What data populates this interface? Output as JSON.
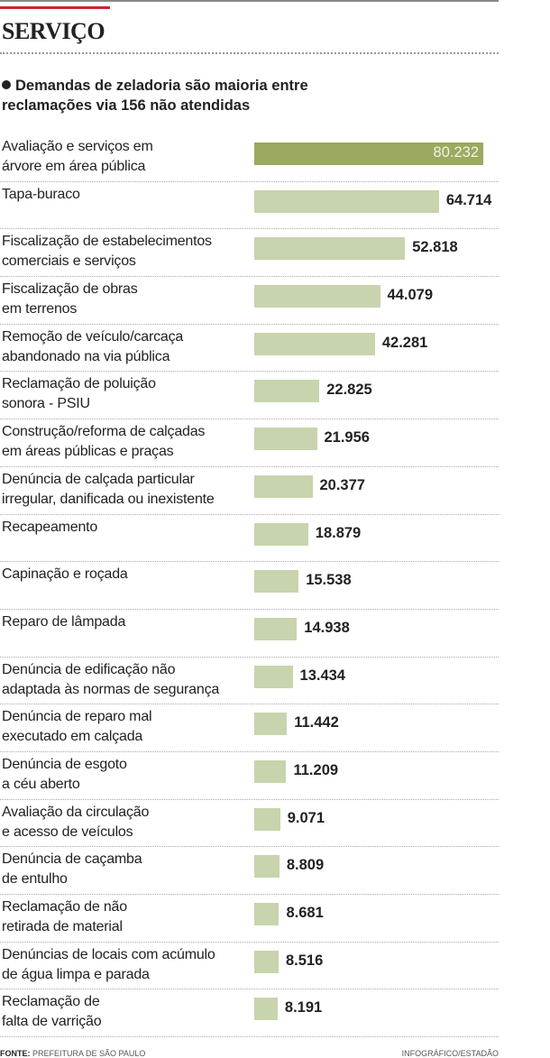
{
  "header": {
    "section": "SERVIÇO",
    "subtitle_line1": "Demandas de zeladoria são maioria entre",
    "subtitle_line2": "reclamações via 156 não atendidas"
  },
  "footer": {
    "source_label": "FONTE:",
    "source": "PREFEITURA DE SÃO PAULO",
    "credit": "INFOGRÁFICO/ESTADÃO"
  },
  "colors": {
    "highlight": "#9aaa5e",
    "bar": "#c8d4ad",
    "accent": "#c9272d"
  },
  "chart_data": {
    "type": "bar",
    "orientation": "horizontal",
    "title": "Demandas de zeladoria são maioria entre reclamações via 156 não atendidas",
    "categories": [
      [
        "Avaliação e serviços em",
        "árvore em área pública"
      ],
      [
        "Tapa-buraco"
      ],
      [
        "Fiscalização de estabelecimentos",
        "comerciais e serviços"
      ],
      [
        "Fiscalização de obras",
        "em terrenos"
      ],
      [
        "Remoção de veículo/carcaça",
        "abandonado na via pública"
      ],
      [
        "Reclamação de poluição",
        "sonora - PSIU"
      ],
      [
        "Construção/reforma de calçadas",
        "em áreas públicas e praças"
      ],
      [
        "Denúncia de calçada particular",
        "irregular, danificada ou inexistente"
      ],
      [
        "Recapeamento"
      ],
      [
        "Capinação e roçada"
      ],
      [
        "Reparo de lâmpada"
      ],
      [
        "Denúncia de edificação não",
        "adaptada às normas de segurança"
      ],
      [
        "Denúncia de reparo mal",
        "executado em calçada"
      ],
      [
        "Denúncia de esgoto",
        "a céu aberto"
      ],
      [
        "Avaliação da circulação",
        "e acesso de veículos"
      ],
      [
        "Denúncia de caçamba",
        "de entulho"
      ],
      [
        "Reclamação de não",
        "retirada de material"
      ],
      [
        "Denúncias de locais com acúmulo",
        "de água limpa e parada"
      ],
      [
        "Reclamação de",
        "falta de varrição"
      ]
    ],
    "values": [
      80232,
      64714,
      52818,
      44079,
      42281,
      22825,
      21956,
      20377,
      18879,
      15538,
      14938,
      13434,
      11442,
      11209,
      9071,
      8809,
      8681,
      8516,
      8191
    ],
    "value_labels": [
      "80.232",
      "64.714",
      "52.818",
      "44.079",
      "42.281",
      "22.825",
      "21.956",
      "20.377",
      "18.879",
      "15.538",
      "14.938",
      "13.434",
      "11.442",
      "11.209",
      "9.071",
      "8.809",
      "8.681",
      "8.516",
      "8.191"
    ],
    "xlim": [
      0,
      80232
    ]
  }
}
